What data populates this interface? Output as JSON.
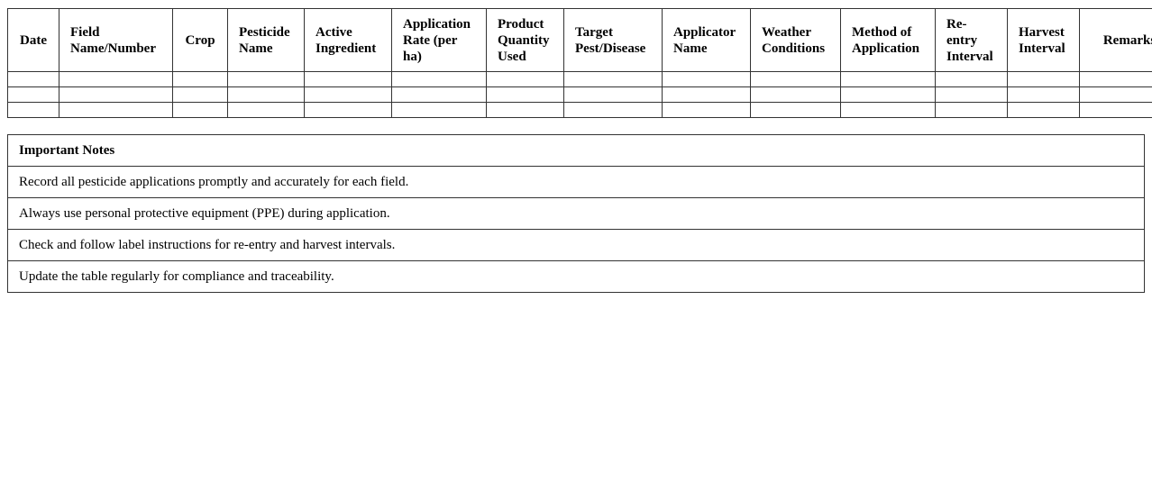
{
  "log_table": {
    "headers": [
      "Date",
      "Field Name/Number",
      "Crop",
      "Pesticide Name",
      "Active Ingredient",
      "Application Rate (per ha)",
      "Product Quantity Used",
      "Target Pest/Disease",
      "Applicator Name",
      "Weather Conditions",
      "Method of Application",
      "Re-entry Interval",
      "Harvest Interval",
      "Remarks"
    ],
    "empty_rows": 3
  },
  "notes": {
    "title": "Important Notes",
    "items": [
      "Record all pesticide applications promptly and accurately for each field.",
      "Always use personal protective equipment (PPE) during application.",
      "Check and follow label instructions for re-entry and harvest intervals.",
      "Update the table regularly for compliance and traceability."
    ]
  }
}
